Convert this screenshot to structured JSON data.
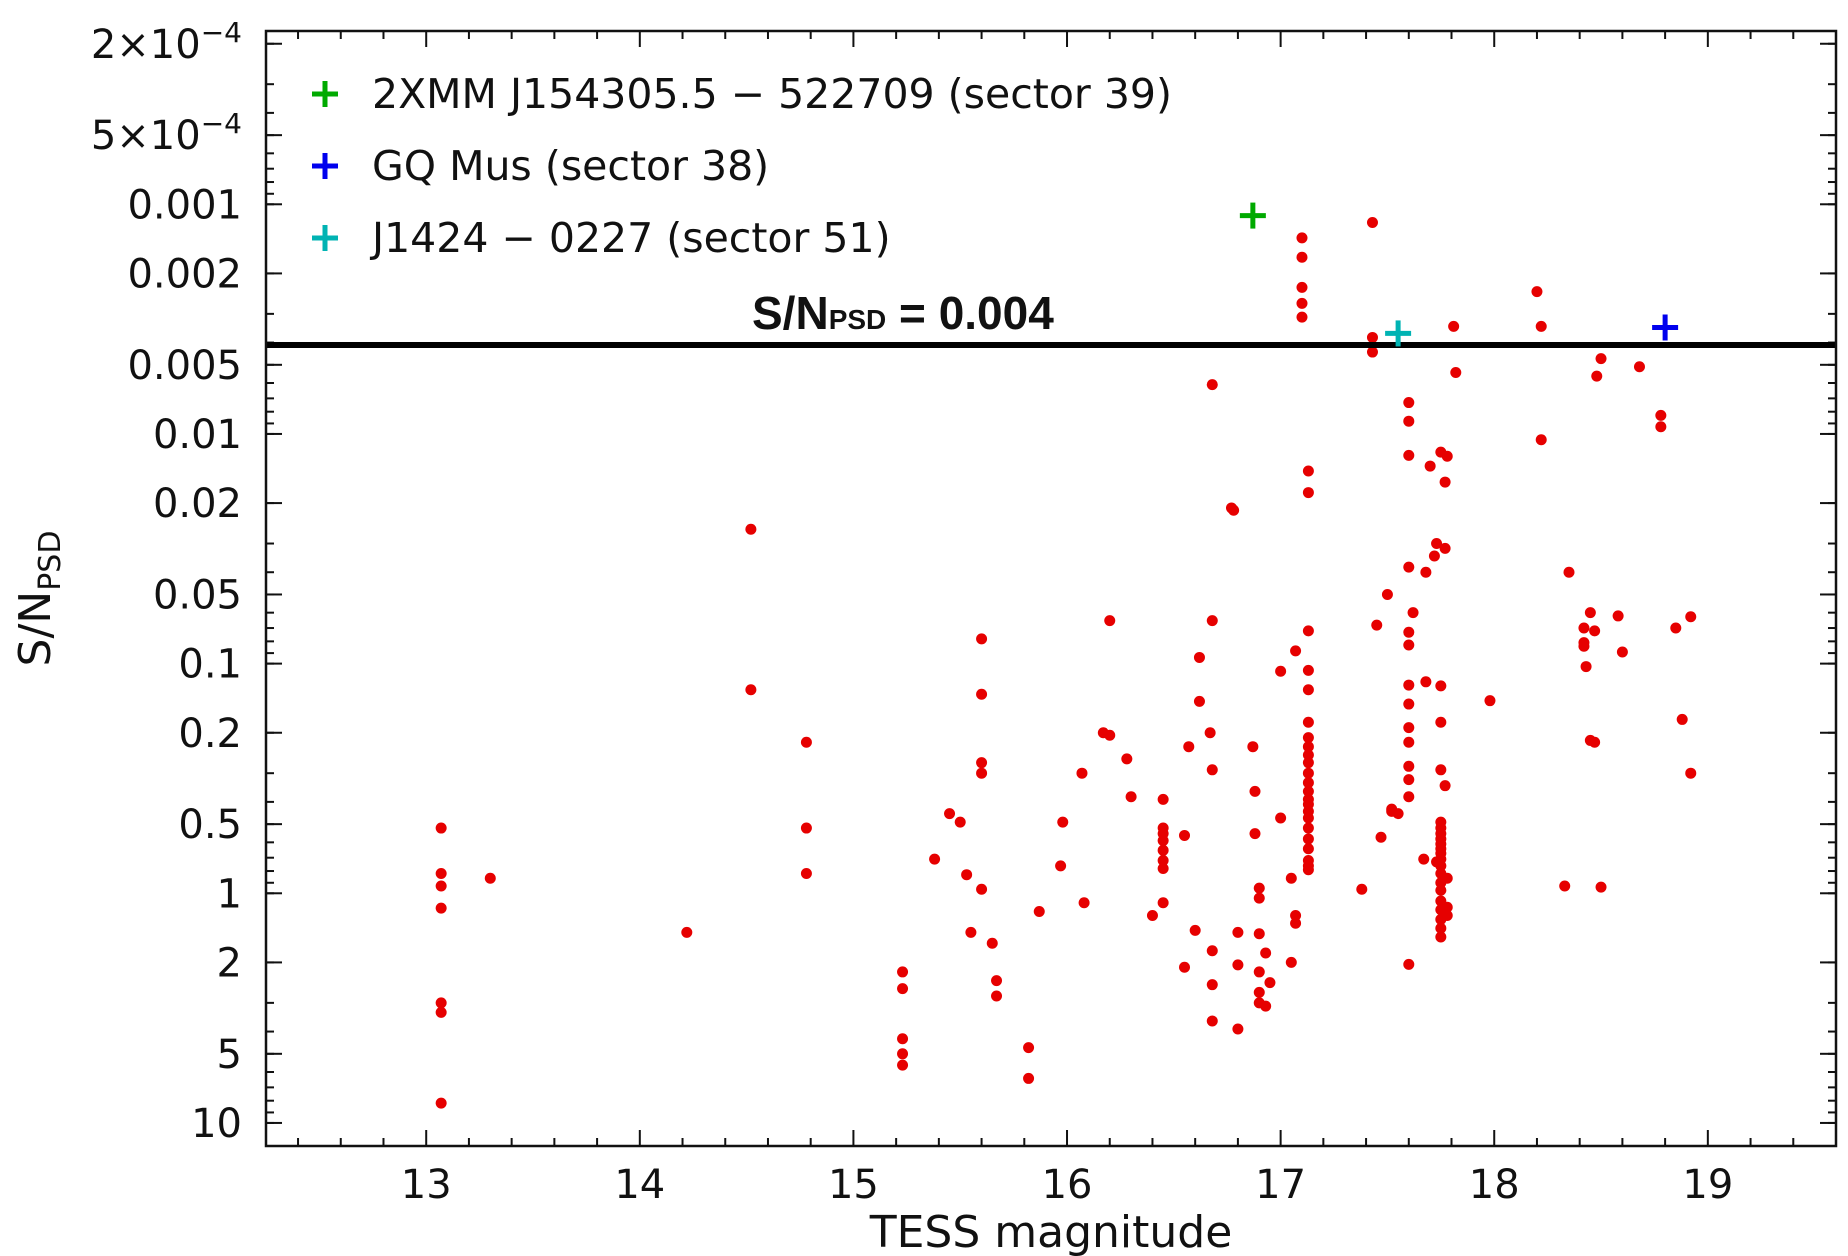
{
  "chart_data": {
    "type": "scatter",
    "xlabel": "TESS magnitude",
    "ylabel_main": "S/N",
    "ylabel_sub": "PSD",
    "xlim": [
      12.25,
      19.6
    ],
    "y_scale": "log-reversed",
    "ylim_top": 0.000176,
    "ylim_bottom": 12.6,
    "x_ticks": [
      13,
      14,
      15,
      16,
      17,
      18,
      19
    ],
    "y_ticks": [
      {
        "value": 0.0002,
        "mantissa": "2",
        "exponent": "-4"
      },
      {
        "value": 0.0005,
        "mantissa": "5",
        "exponent": "-4"
      },
      {
        "value": 0.001,
        "label": "0.001"
      },
      {
        "value": 0.002,
        "label": "0.002"
      },
      {
        "value": 0.005,
        "label": "0.005"
      },
      {
        "value": 0.01,
        "label": "0.01"
      },
      {
        "value": 0.02,
        "label": "0.02"
      },
      {
        "value": 0.05,
        "label": "0.05"
      },
      {
        "value": 0.1,
        "label": "0.1"
      },
      {
        "value": 0.2,
        "label": "0.2"
      },
      {
        "value": 0.5,
        "label": "0.5"
      },
      {
        "value": 1,
        "label": "1"
      },
      {
        "value": 2,
        "label": "2"
      },
      {
        "value": 5,
        "label": "5"
      },
      {
        "value": 10,
        "label": "10"
      }
    ],
    "threshold": {
      "value": 0.0041,
      "label_main": "S/N",
      "label_sub": "PSD",
      "label_value": "= 0.004"
    },
    "series": [
      {
        "name": "sample",
        "color": "#e60000",
        "marker": "dot",
        "points": [
          [
            13.07,
            0.52
          ],
          [
            13.07,
            0.82
          ],
          [
            13.07,
            0.93
          ],
          [
            13.07,
            1.16
          ],
          [
            13.07,
            3.0
          ],
          [
            13.07,
            3.3
          ],
          [
            13.07,
            8.2
          ],
          [
            13.3,
            0.86
          ],
          [
            14.22,
            1.48
          ],
          [
            14.52,
            0.026
          ],
          [
            14.52,
            0.13
          ],
          [
            14.78,
            0.22
          ],
          [
            14.78,
            0.52
          ],
          [
            14.78,
            0.82
          ],
          [
            15.23,
            2.2
          ],
          [
            15.23,
            2.6
          ],
          [
            15.23,
            4.3
          ],
          [
            15.23,
            5.0
          ],
          [
            15.23,
            5.6
          ],
          [
            15.38,
            0.71
          ],
          [
            15.45,
            0.45
          ],
          [
            15.5,
            0.49
          ],
          [
            15.53,
            0.83
          ],
          [
            15.55,
            1.48
          ],
          [
            15.6,
            0.078
          ],
          [
            15.6,
            0.136
          ],
          [
            15.6,
            0.27
          ],
          [
            15.6,
            0.3
          ],
          [
            15.6,
            0.96
          ],
          [
            15.65,
            1.65
          ],
          [
            15.67,
            2.4
          ],
          [
            15.67,
            2.8
          ],
          [
            15.82,
            4.7
          ],
          [
            15.82,
            6.4
          ],
          [
            15.87,
            1.2
          ],
          [
            15.97,
            0.76
          ],
          [
            15.98,
            0.49
          ],
          [
            16.07,
            0.3
          ],
          [
            16.08,
            1.1
          ],
          [
            16.17,
            0.2
          ],
          [
            16.2,
            0.205
          ],
          [
            16.2,
            0.065
          ],
          [
            16.28,
            0.26
          ],
          [
            16.3,
            0.38
          ],
          [
            16.4,
            1.25
          ],
          [
            16.45,
            0.39
          ],
          [
            16.45,
            0.52
          ],
          [
            16.45,
            0.55
          ],
          [
            16.45,
            0.59
          ],
          [
            16.45,
            0.65
          ],
          [
            16.45,
            0.72
          ],
          [
            16.45,
            0.78
          ],
          [
            16.45,
            1.1
          ],
          [
            16.55,
            0.56
          ],
          [
            16.55,
            2.1
          ],
          [
            16.57,
            0.23
          ],
          [
            16.6,
            1.45
          ],
          [
            16.62,
            0.094
          ],
          [
            16.62,
            0.146
          ],
          [
            16.67,
            0.2
          ],
          [
            16.68,
            0.065
          ],
          [
            16.68,
            0.29
          ],
          [
            16.68,
            1.78
          ],
          [
            16.68,
            2.5
          ],
          [
            16.68,
            3.6
          ],
          [
            16.68,
            0.0061
          ],
          [
            16.77,
            0.021
          ],
          [
            16.78,
            0.0215
          ],
          [
            16.8,
            1.48
          ],
          [
            16.8,
            2.05
          ],
          [
            16.8,
            3.9
          ],
          [
            16.87,
            0.23
          ],
          [
            16.88,
            0.36
          ],
          [
            16.88,
            0.55
          ],
          [
            16.9,
            0.95
          ],
          [
            16.9,
            1.05
          ],
          [
            16.9,
            1.5
          ],
          [
            16.9,
            2.2
          ],
          [
            16.9,
            2.7
          ],
          [
            16.9,
            3.0
          ],
          [
            16.93,
            1.82
          ],
          [
            16.93,
            3.1
          ],
          [
            16.95,
            2.45
          ],
          [
            17.0,
            0.47
          ],
          [
            17.0,
            0.108
          ],
          [
            17.05,
            0.86
          ],
          [
            17.05,
            2.0
          ],
          [
            17.07,
            1.25
          ],
          [
            17.07,
            1.35
          ],
          [
            17.07,
            0.088
          ],
          [
            17.1,
            0.0014
          ],
          [
            17.1,
            0.0017
          ],
          [
            17.1,
            0.0023
          ],
          [
            17.1,
            0.0027
          ],
          [
            17.1,
            0.0031
          ],
          [
            17.13,
            0.0145
          ],
          [
            17.13,
            0.018
          ],
          [
            17.13,
            0.072
          ],
          [
            17.13,
            0.107
          ],
          [
            17.13,
            0.13
          ],
          [
            17.13,
            0.18
          ],
          [
            17.13,
            0.21
          ],
          [
            17.13,
            0.23
          ],
          [
            17.13,
            0.25
          ],
          [
            17.13,
            0.27
          ],
          [
            17.13,
            0.3
          ],
          [
            17.13,
            0.33
          ],
          [
            17.13,
            0.36
          ],
          [
            17.13,
            0.39
          ],
          [
            17.13,
            0.41
          ],
          [
            17.13,
            0.44
          ],
          [
            17.13,
            0.47
          ],
          [
            17.13,
            0.52
          ],
          [
            17.13,
            0.58
          ],
          [
            17.13,
            0.64
          ],
          [
            17.13,
            0.72
          ],
          [
            17.13,
            0.76
          ],
          [
            17.13,
            0.79
          ],
          [
            17.38,
            0.96
          ],
          [
            17.43,
            0.0012
          ],
          [
            17.43,
            0.0038
          ],
          [
            17.43,
            0.0044
          ],
          [
            17.45,
            0.068
          ],
          [
            17.47,
            0.57
          ],
          [
            17.5,
            0.05
          ],
          [
            17.52,
            0.43
          ],
          [
            17.52,
            0.44
          ],
          [
            17.55,
            0.45
          ],
          [
            17.6,
            0.0073
          ],
          [
            17.6,
            0.0124
          ],
          [
            17.6,
            0.038
          ],
          [
            17.6,
            0.073
          ],
          [
            17.6,
            0.083
          ],
          [
            17.6,
            0.124
          ],
          [
            17.6,
            0.15
          ],
          [
            17.6,
            0.19
          ],
          [
            17.6,
            0.22
          ],
          [
            17.6,
            0.28
          ],
          [
            17.6,
            0.32
          ],
          [
            17.6,
            0.38
          ],
          [
            17.6,
            2.04
          ],
          [
            17.6,
            0.0088
          ],
          [
            17.62,
            0.06
          ],
          [
            17.67,
            0.71
          ],
          [
            17.68,
            0.04
          ],
          [
            17.68,
            0.12
          ],
          [
            17.7,
            0.0138
          ],
          [
            17.72,
            0.034
          ],
          [
            17.73,
            0.03
          ],
          [
            17.73,
            0.73
          ],
          [
            17.75,
            0.012
          ],
          [
            17.75,
            0.125
          ],
          [
            17.75,
            0.18
          ],
          [
            17.75,
            0.29
          ],
          [
            17.75,
            0.49
          ],
          [
            17.75,
            0.52
          ],
          [
            17.75,
            0.55
          ],
          [
            17.75,
            0.58
          ],
          [
            17.75,
            0.61
          ],
          [
            17.75,
            0.64
          ],
          [
            17.75,
            0.67
          ],
          [
            17.75,
            0.71
          ],
          [
            17.75,
            0.76
          ],
          [
            17.75,
            0.82
          ],
          [
            17.75,
            0.9
          ],
          [
            17.75,
            0.97
          ],
          [
            17.75,
            1.08
          ],
          [
            17.75,
            1.18
          ],
          [
            17.75,
            1.3
          ],
          [
            17.75,
            1.42
          ],
          [
            17.75,
            1.55
          ],
          [
            17.77,
            0.0162
          ],
          [
            17.77,
            0.0315
          ],
          [
            17.77,
            0.34
          ],
          [
            17.78,
            0.0125
          ],
          [
            17.78,
            0.86
          ],
          [
            17.78,
            1.15
          ],
          [
            17.78,
            1.25
          ],
          [
            17.81,
            0.0034
          ],
          [
            17.82,
            0.0054
          ],
          [
            17.98,
            0.145
          ],
          [
            18.2,
            0.0024
          ],
          [
            18.22,
            0.0034
          ],
          [
            18.22,
            0.0106
          ],
          [
            18.33,
            0.93
          ],
          [
            18.35,
            0.04
          ],
          [
            18.42,
            0.07
          ],
          [
            18.42,
            0.081
          ],
          [
            18.42,
            0.084
          ],
          [
            18.43,
            0.103
          ],
          [
            18.45,
            0.06
          ],
          [
            18.45,
            0.216
          ],
          [
            18.47,
            0.072
          ],
          [
            18.47,
            0.22
          ],
          [
            18.48,
            0.0056
          ],
          [
            18.5,
            0.0047
          ],
          [
            18.5,
            0.94
          ],
          [
            18.58,
            0.062
          ],
          [
            18.6,
            0.089
          ],
          [
            18.68,
            0.0051
          ],
          [
            18.78,
            0.0093
          ],
          [
            18.78,
            0.0083
          ],
          [
            18.85,
            0.07
          ],
          [
            18.88,
            0.175
          ],
          [
            18.92,
            0.0625
          ],
          [
            18.92,
            0.3
          ]
        ]
      }
    ],
    "highlights": [
      {
        "label": "2XMM J154305.5 − 522709 (sector 39)",
        "color": "#00aa00",
        "x": 16.87,
        "y": 0.00112
      },
      {
        "label": "GQ Mus (sector 38)",
        "color": "#0000ee",
        "x": 18.8,
        "y": 0.00344
      },
      {
        "label": "J1424 − 0227 (sector 51)",
        "color": "#00b3b3",
        "x": 17.55,
        "y": 0.00365
      }
    ]
  }
}
